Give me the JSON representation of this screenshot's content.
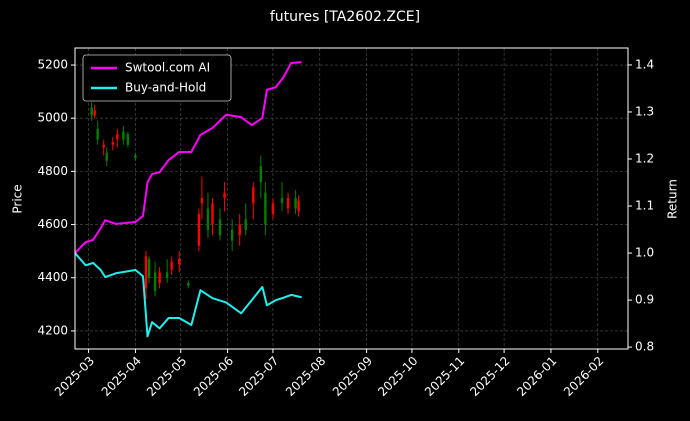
{
  "chart_data": {
    "type": "candlestick",
    "title": "futures [TA2602.ZCE]",
    "y_label": "Price",
    "y2_label": "Return",
    "xlim": [
      "2025-02-20",
      "2026-02-21"
    ],
    "xticks": [
      {
        "value": "2025-03-01",
        "label": "2025-03"
      },
      {
        "value": "2025-04-01",
        "label": "2025-04"
      },
      {
        "value": "2025-05-01",
        "label": "2025-05"
      },
      {
        "value": "2025-06-01",
        "label": "2025-06"
      },
      {
        "value": "2025-07-01",
        "label": "2025-07"
      },
      {
        "value": "2025-08-01",
        "label": "2025-08"
      },
      {
        "value": "2025-09-01",
        "label": "2025-09"
      },
      {
        "value": "2025-10-01",
        "label": "2025-10"
      },
      {
        "value": "2025-11-01",
        "label": "2025-11"
      },
      {
        "value": "2025-12-01",
        "label": "2025-12"
      },
      {
        "value": "2026-01-01",
        "label": "2026-01"
      },
      {
        "value": "2026-02-01",
        "label": "2026-02"
      }
    ],
    "ylim": [
      4132,
      5264
    ],
    "yticks": [
      4200,
      4400,
      4600,
      4800,
      5000,
      5200
    ],
    "y2lim": [
      0.796,
      1.436
    ],
    "y2ticks": [
      0.8,
      0.9,
      {
        "value": 1,
        "label": "1.0"
      },
      1.1,
      1.2,
      1.3,
      1.4
    ],
    "grid": true,
    "legend": "upper left",
    "candles": {
      "up_color": "#ff0000",
      "down_color": "#008000",
      "x": [
        "2025-03-03",
        "2025-03-05",
        "2025-03-07",
        "2025-03-11",
        "2025-03-13",
        "2025-03-17",
        "2025-03-20",
        "2025-03-24",
        "2025-03-27",
        "2025-04-01",
        "2025-04-08",
        "2025-04-10",
        "2025-04-14",
        "2025-04-17",
        "2025-04-22",
        "2025-04-25",
        "2025-04-30",
        "2025-05-06",
        "2025-05-13",
        "2025-05-15",
        "2025-05-19",
        "2025-05-22",
        "2025-05-27",
        "2025-05-30",
        "2025-06-04",
        "2025-06-09",
        "2025-06-13",
        "2025-06-18",
        "2025-06-23",
        "2025-06-26",
        "2025-07-01",
        "2025-07-07",
        "2025-07-11",
        "2025-07-16",
        "2025-07-18"
      ],
      "open": [
        5040,
        5010,
        4960,
        4890,
        4870,
        4900,
        4920,
        4950,
        4940,
        4860,
        4360,
        4470,
        4420,
        4380,
        4420,
        4430,
        4450,
        4380,
        4520,
        4680,
        4660,
        4600,
        4620,
        4700,
        4580,
        4560,
        4620,
        4680,
        4820,
        4720,
        4640,
        4700,
        4660,
        4700,
        4650
      ],
      "high": [
        5060,
        5050,
        4990,
        4920,
        4890,
        4930,
        4960,
        4970,
        4950,
        4870,
        4500,
        4480,
        4460,
        4440,
        4470,
        4480,
        4500,
        4390,
        4660,
        4780,
        4720,
        4700,
        4660,
        4760,
        4620,
        4640,
        4680,
        4760,
        4860,
        4760,
        4700,
        4760,
        4720,
        4730,
        4710
      ],
      "low": [
        4990,
        5000,
        4900,
        4860,
        4820,
        4880,
        4890,
        4900,
        4890,
        4840,
        4320,
        4380,
        4330,
        4360,
        4380,
        4410,
        4420,
        4360,
        4500,
        4620,
        4550,
        4560,
        4540,
        4650,
        4500,
        4520,
        4560,
        4620,
        4700,
        4560,
        4620,
        4650,
        4640,
        4640,
        4630
      ],
      "close": [
        5010,
        5030,
        4920,
        4900,
        4840,
        4910,
        4940,
        4920,
        4900,
        4850,
        4480,
        4400,
        4350,
        4420,
        4400,
        4460,
        4470,
        4370,
        4640,
        4700,
        4580,
        4680,
        4560,
        4720,
        4540,
        4600,
        4580,
        4740,
        4760,
        4600,
        4680,
        4680,
        4700,
        4660,
        4690
      ]
    },
    "x": [
      "2025-02-20",
      "2025-02-27",
      "2025-03-04",
      "2025-03-09",
      "2025-03-12",
      "2025-03-19",
      "2025-04-01",
      "2025-04-06",
      "2025-04-09",
      "2025-04-12",
      "2025-04-17",
      "2025-04-23",
      "2025-04-30",
      "2025-05-08",
      "2025-05-14",
      "2025-05-22",
      "2025-05-31",
      "2025-06-10",
      "2025-06-17",
      "2025-06-24",
      "2025-06-27",
      "2025-07-03",
      "2025-07-08",
      "2025-07-13",
      "2025-07-20"
    ],
    "series": [
      {
        "name": "Swtool.com AI",
        "color": "#ff00ff",
        "axis": "y2",
        "values": [
          1.0,
          1.023,
          1.028,
          1.053,
          1.07,
          1.062,
          1.066,
          1.079,
          1.15,
          1.168,
          1.172,
          1.198,
          1.215,
          1.215,
          1.251,
          1.266,
          1.294,
          1.289,
          1.272,
          1.287,
          1.347,
          1.353,
          1.374,
          1.404,
          1.406
        ]
      },
      {
        "name": "Buy-and-Hold",
        "color": "#22eeee",
        "axis": "y2",
        "values": [
          1.0,
          0.974,
          0.979,
          0.964,
          0.949,
          0.957,
          0.964,
          0.951,
          0.823,
          0.853,
          0.84,
          0.862,
          0.862,
          0.847,
          0.921,
          0.904,
          0.895,
          0.872,
          0.9,
          0.928,
          0.889,
          0.9,
          0.905,
          0.911,
          0.906
        ]
      }
    ]
  }
}
